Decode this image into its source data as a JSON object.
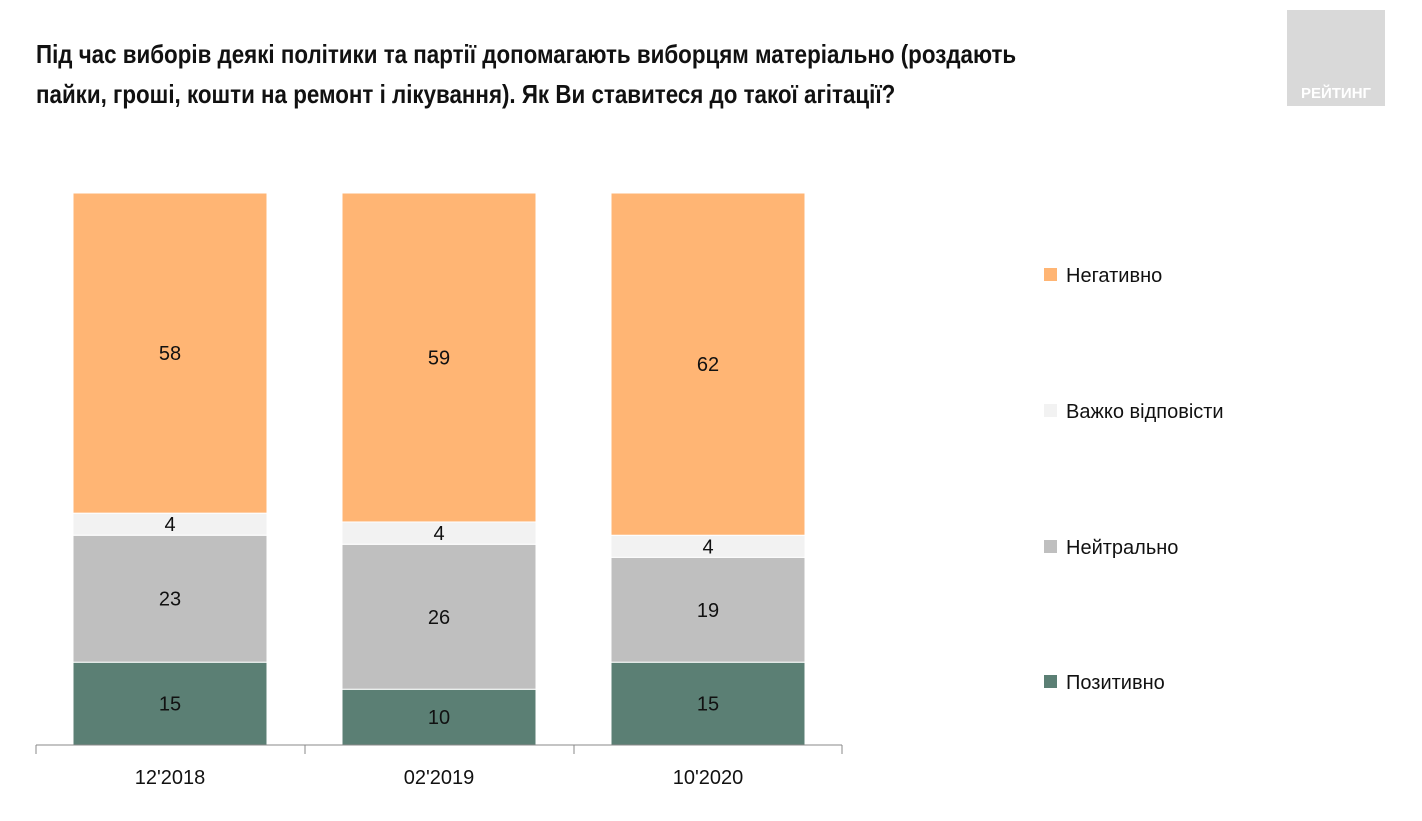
{
  "title": "Під час виборів деякі політики та партії допомагають виборцям матеріально (роздають пайки, гроші, кошти на ремонт і лікування). Як Ви ставитеся до такої агітації?",
  "logo_text": "РЕЙТИНГ",
  "chart_data": {
    "type": "bar",
    "stacked": true,
    "normalized": true,
    "categories": [
      "12'2018",
      "02'2019",
      "10'2020"
    ],
    "series": [
      {
        "name": "Позитивно",
        "color": "#5b7f74",
        "values": [
          15,
          10,
          15
        ]
      },
      {
        "name": "Нейтрально",
        "color": "#bfbfbf",
        "values": [
          23,
          26,
          19
        ]
      },
      {
        "name": "Важко відповісти",
        "color": "#f2f2f2",
        "values": [
          4,
          4,
          4
        ]
      },
      {
        "name": "Негативно",
        "color": "#ffb574",
        "values": [
          58,
          59,
          62
        ]
      }
    ],
    "legend_order": [
      "Негативно",
      "Важко відповісти",
      "Нейтрально",
      "Позитивно"
    ],
    "legend_placement": "right",
    "grid": false,
    "ylim": [
      0,
      100
    ]
  }
}
